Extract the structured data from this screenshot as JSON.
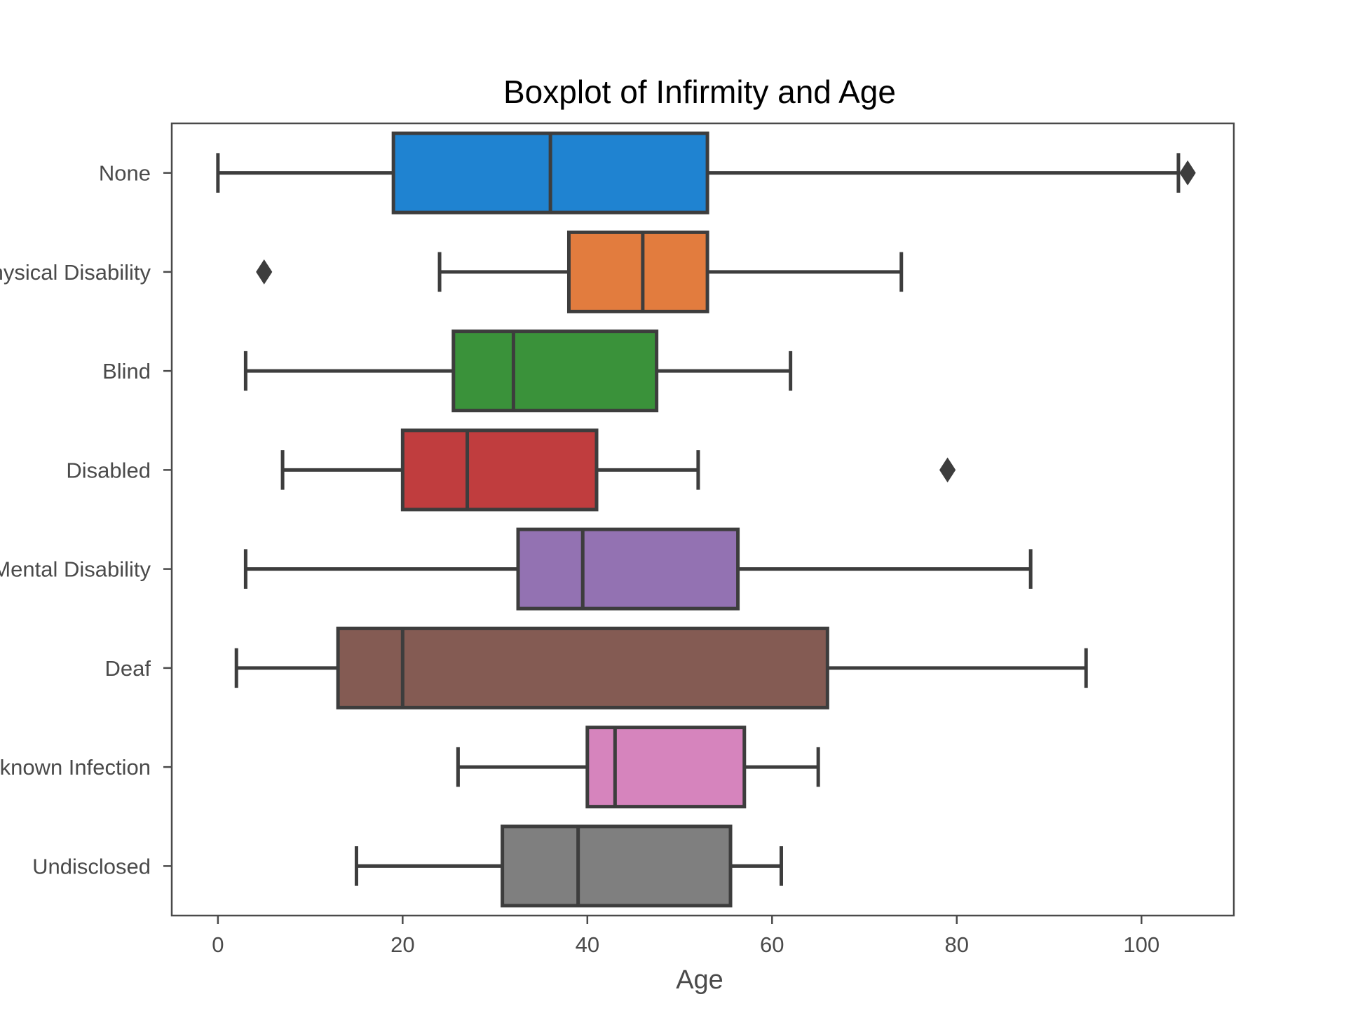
{
  "chart_data": {
    "type": "boxplot",
    "orientation": "horizontal",
    "title": "Boxplot of Infirmity and Age",
    "xlabel": "Age",
    "ylabel": "",
    "xlim": [
      -5,
      110
    ],
    "xticks": [
      0,
      20,
      40,
      60,
      80,
      100
    ],
    "grid": false,
    "categories": [
      "None",
      "Physical Disability",
      "Blind",
      "Disabled",
      "Mental Disability",
      "Deaf",
      "Unknown Infection",
      "Undisclosed"
    ],
    "series": [
      {
        "category": "None",
        "color": "#1f83d1",
        "whisker_low": 0,
        "q1": 19,
        "median": 36,
        "q3": 53,
        "whisker_high": 104,
        "outliers": [
          105
        ]
      },
      {
        "category": "Physical Disability",
        "color": "#e27c3e",
        "whisker_low": 24,
        "q1": 38,
        "median": 46,
        "q3": 53,
        "whisker_high": 74,
        "outliers": [
          5
        ]
      },
      {
        "category": "Blind",
        "color": "#3a923a",
        "whisker_low": 3,
        "q1": 25.5,
        "median": 32,
        "q3": 47.5,
        "whisker_high": 62,
        "outliers": []
      },
      {
        "category": "Disabled",
        "color": "#c03d3e",
        "whisker_low": 7,
        "q1": 20,
        "median": 27,
        "q3": 41,
        "whisker_high": 52,
        "outliers": [
          79
        ]
      },
      {
        "category": "Mental Disability",
        "color": "#9372b2",
        "whisker_low": 3,
        "q1": 32.5,
        "median": 39.5,
        "q3": 56.3,
        "whisker_high": 88,
        "outliers": []
      },
      {
        "category": "Deaf",
        "color": "#845b53",
        "whisker_low": 2,
        "q1": 13,
        "median": 20,
        "q3": 66,
        "whisker_high": 94,
        "outliers": []
      },
      {
        "category": "Unknown Infection",
        "color": "#d684bd",
        "whisker_low": 26,
        "q1": 40,
        "median": 43,
        "q3": 57,
        "whisker_high": 65,
        "outliers": []
      },
      {
        "category": "Undisclosed",
        "color": "#7f7f7f",
        "whisker_low": 15,
        "q1": 30.8,
        "median": 39,
        "q3": 55.5,
        "whisker_high": 61,
        "outliers": []
      }
    ],
    "line_color": "#3d3d3d"
  }
}
